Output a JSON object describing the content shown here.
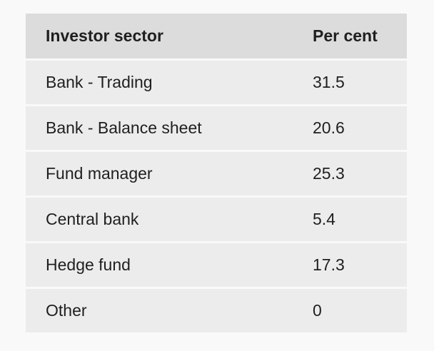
{
  "table": {
    "headers": [
      "Investor sector",
      "Per cent"
    ],
    "rows": [
      {
        "sector": "Bank - Trading",
        "percent": "31.5"
      },
      {
        "sector": "Bank - Balance sheet",
        "percent": "20.6"
      },
      {
        "sector": "Fund manager",
        "percent": "25.3"
      },
      {
        "sector": "Central bank",
        "percent": "5.4"
      },
      {
        "sector": "Hedge fund",
        "percent": "17.3"
      },
      {
        "sector": "Other",
        "percent": "0"
      }
    ]
  }
}
